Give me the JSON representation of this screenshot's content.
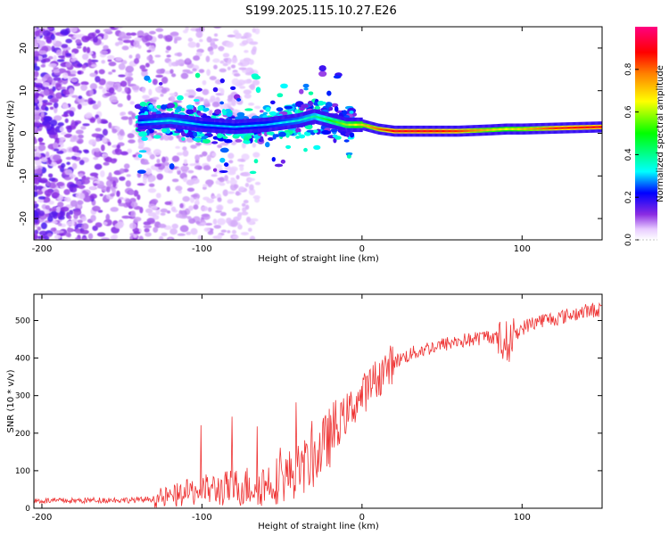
{
  "figure": {
    "title": "S199.2025.115.10.27.E26"
  },
  "chart_data": [
    {
      "type": "heatmap",
      "xlabel": "Height of straight line (km)",
      "ylabel": "Frequency (Hz)",
      "xlim": [
        -205,
        150
      ],
      "ylim": [
        -25,
        25
      ],
      "x_ticks": [
        -200,
        -100,
        0,
        100
      ],
      "y_ticks": [
        -20,
        -10,
        0,
        10,
        20
      ],
      "colorbar": {
        "label": "Normalized spectral amplitude",
        "ticks": [
          "0.0",
          "0.2",
          "0.4",
          "0.6",
          "0.8"
        ],
        "range": [
          0,
          1
        ],
        "colormap": "rainbow"
      },
      "ridge": {
        "description_x": [
          -140,
          -120,
          -100,
          -80,
          -60,
          -40,
          -30,
          -20,
          -10,
          0,
          10,
          20,
          40,
          60,
          80,
          90,
          100,
          120,
          150
        ],
        "frequency_hz": [
          2.5,
          3,
          2,
          1.5,
          2,
          3,
          4,
          3,
          2,
          2,
          1,
          0.5,
          0.5,
          0.5,
          0.8,
          1,
          1,
          1.2,
          1.5
        ],
        "amplitude": [
          0.3,
          0.35,
          0.3,
          0.3,
          0.3,
          0.35,
          0.4,
          0.5,
          0.6,
          0.7,
          0.8,
          0.9,
          0.9,
          0.85,
          0.7,
          0.65,
          0.7,
          0.85,
          0.9
        ]
      }
    },
    {
      "type": "line",
      "xlabel": "Height of straight line (km)",
      "ylabel": "SNR (10 * v/v)",
      "xlim": [
        -205,
        150
      ],
      "ylim": [
        0,
        570
      ],
      "x_ticks": [
        -200,
        -100,
        0,
        100
      ],
      "y_ticks": [
        0,
        100,
        200,
        300,
        400,
        500
      ],
      "series": [
        {
          "color": "#ee3333",
          "x": [
            -205,
            -180,
            -160,
            -140,
            -130,
            -120,
            -110,
            -100,
            -90,
            -80,
            -70,
            -60,
            -50,
            -40,
            -30,
            -20,
            -10,
            0,
            10,
            20,
            30,
            40,
            50,
            60,
            70,
            80,
            90,
            100,
            110,
            120,
            130,
            140,
            150
          ],
          "values": [
            20,
            20,
            22,
            22,
            25,
            30,
            40,
            50,
            50,
            55,
            60,
            65,
            80,
            100,
            130,
            190,
            250,
            300,
            350,
            390,
            410,
            425,
            435,
            445,
            450,
            460,
            440,
            480,
            500,
            505,
            515,
            525,
            530
          ]
        }
      ]
    }
  ]
}
